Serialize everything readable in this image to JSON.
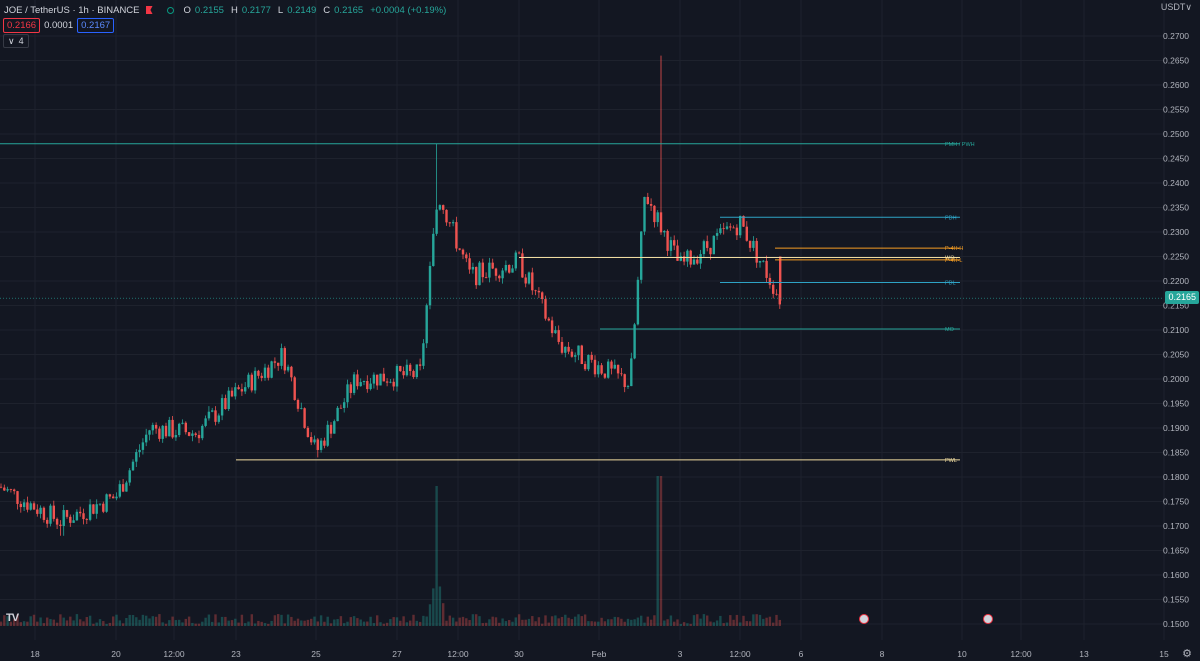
{
  "header": {
    "title": "JOE / TetherUS · 1h · BINANCE",
    "ohlc": [
      {
        "k": "O",
        "v": "0.2155"
      },
      {
        "k": "H",
        "v": "0.2177"
      },
      {
        "k": "L",
        "v": "0.2149"
      },
      {
        "k": "C",
        "v": "0.2165"
      },
      {
        "k": "",
        "v": "+0.0004 (+0.19%)"
      }
    ],
    "bid": "0.2166",
    "spread": "0.0001",
    "ask": "0.2167",
    "indicators_toggle": "∨",
    "indicators_count": "4"
  },
  "axis": {
    "currency": "USDT∨",
    "current_price": "0.2165",
    "y_ticks": [
      "0.2700",
      "0.2650",
      "0.2600",
      "0.2550",
      "0.2500",
      "0.2450",
      "0.2400",
      "0.2350",
      "0.2300",
      "0.2250",
      "0.2200",
      "0.2150",
      "0.2100",
      "0.2050",
      "0.2000",
      "0.1950",
      "0.1900",
      "0.1850",
      "0.1800",
      "0.1750",
      "0.1700",
      "0.1650",
      "0.1600",
      "0.1550",
      "0.1500"
    ],
    "x_ticks": [
      "18",
      "20",
      "12:00",
      "23",
      "25",
      "27",
      "12:00",
      "30",
      "Feb",
      "3",
      "12:00",
      "6",
      "8",
      "10",
      "12:00",
      "13",
      "15"
    ]
  },
  "chart_data": {
    "type": "candlestick",
    "symbol": "JOE / TetherUS",
    "interval": "1h",
    "exchange": "BINANCE",
    "ylim": [
      0.15,
      0.27
    ],
    "last_close": 0.2165,
    "key_points": [
      {
        "x": "18",
        "price": 0.178
      },
      {
        "x": "19",
        "price": 0.171
      },
      {
        "x": "20",
        "price": 0.176
      },
      {
        "x": "21",
        "price": 0.19
      },
      {
        "x": "22",
        "price": 0.189
      },
      {
        "x": "23",
        "price": 0.197
      },
      {
        "x": "24",
        "price": 0.205
      },
      {
        "x": "25",
        "price": 0.185
      },
      {
        "x": "26",
        "price": 0.2
      },
      {
        "x": "27",
        "price": 0.201
      },
      {
        "x": "28",
        "price": 0.238
      },
      {
        "x": "29",
        "price": 0.221
      },
      {
        "x": "30",
        "price": 0.224
      },
      {
        "x": "31",
        "price": 0.207
      },
      {
        "x": "Feb",
        "price": 0.199
      },
      {
        "x": "2",
        "price": 0.238
      },
      {
        "x": "3",
        "price": 0.223
      },
      {
        "x": "4",
        "price": 0.232
      },
      {
        "x": "5",
        "price": 0.2165
      }
    ],
    "levels": [
      {
        "label": "PMH / PWH",
        "price": 0.248,
        "color": "#26a69a"
      },
      {
        "label": "PDH",
        "price": 0.233,
        "color": "#2ea3c5"
      },
      {
        "label": "P-4H-H",
        "price": 0.2267,
        "color": "#f59d23"
      },
      {
        "label": "WO",
        "price": 0.2248,
        "color": "#f0dca0"
      },
      {
        "label": "P-4H-L",
        "price": 0.2243,
        "color": "#f59d23"
      },
      {
        "label": "PDL",
        "price": 0.2197,
        "color": "#2ea3c5"
      },
      {
        "label": "MO",
        "price": 0.2102,
        "color": "#26a69a"
      },
      {
        "label": "PWL",
        "price": 0.1835,
        "color": "#f0dca0"
      }
    ],
    "colors": {
      "up": "#26a69a",
      "down": "#ef5350",
      "background": "#131722"
    }
  }
}
